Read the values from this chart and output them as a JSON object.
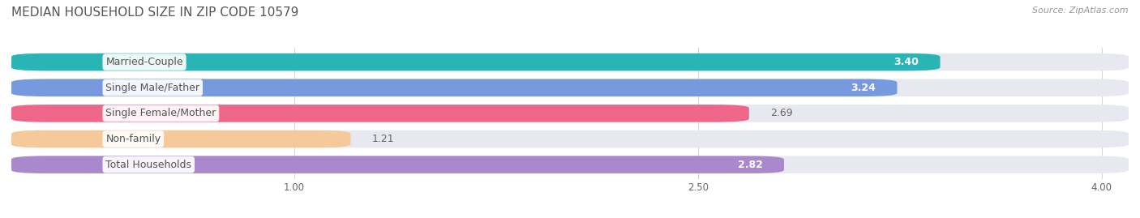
{
  "title": "MEDIAN HOUSEHOLD SIZE IN ZIP CODE 10579",
  "source": "Source: ZipAtlas.com",
  "categories": [
    "Married-Couple",
    "Single Male/Father",
    "Single Female/Mother",
    "Non-family",
    "Total Households"
  ],
  "values": [
    3.4,
    3.24,
    2.69,
    1.21,
    2.82
  ],
  "bar_colors": [
    "#29b5b5",
    "#7799dd",
    "#ee6688",
    "#f5c99a",
    "#aa88cc"
  ],
  "bar_bg_color": "#e8e8f0",
  "value_colors": [
    "#ffffff",
    "#ffffff",
    "#555555",
    "#777777",
    "#ffffff"
  ],
  "value_inside": [
    true,
    true,
    false,
    false,
    true
  ],
  "xlim_min": 0,
  "xlim_max": 4.0,
  "xstart": 0,
  "xticks": [
    1.0,
    2.5,
    4.0
  ],
  "title_fontsize": 11,
  "source_fontsize": 8,
  "bar_label_fontsize": 9,
  "category_fontsize": 9,
  "background_color": "#ffffff",
  "bar_area_bg": "#f5f5fa"
}
